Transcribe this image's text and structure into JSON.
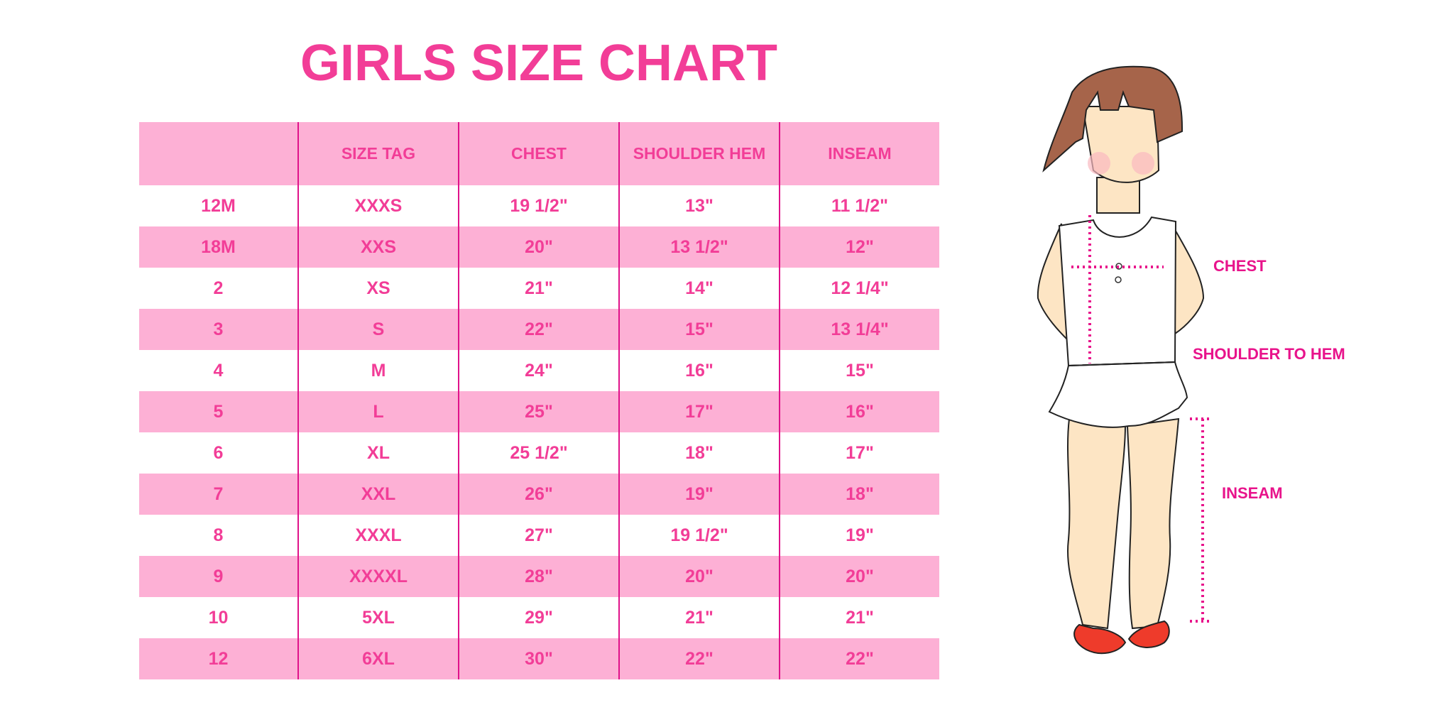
{
  "title": "GIRLS SIZE CHART",
  "table": {
    "headers": [
      "",
      "SIZE TAG",
      "CHEST",
      "SHOULDER HEM",
      "INSEAM"
    ],
    "rows": [
      [
        "12M",
        "XXXS",
        "19 1/2\"",
        "13\"",
        "11 1/2\""
      ],
      [
        "18M",
        "XXS",
        "20\"",
        "13 1/2\"",
        "12\""
      ],
      [
        "2",
        "XS",
        "21\"",
        "14\"",
        "12 1/4\""
      ],
      [
        "3",
        "S",
        "22\"",
        "15\"",
        "13 1/4\""
      ],
      [
        "4",
        "M",
        "24\"",
        "16\"",
        "15\""
      ],
      [
        "5",
        "L",
        "25\"",
        "17\"",
        "16\""
      ],
      [
        "6",
        "XL",
        "25 1/2\"",
        "18\"",
        "17\""
      ],
      [
        "7",
        "XXL",
        "26\"",
        "19\"",
        "18\""
      ],
      [
        "8",
        "XXXL",
        "27\"",
        "19 1/2\"",
        "19\""
      ],
      [
        "9",
        "XXXXL",
        "28\"",
        "20\"",
        "20\""
      ],
      [
        "10",
        "5XL",
        "29\"",
        "21\"",
        "21\""
      ],
      [
        "12",
        "6XL",
        "30\"",
        "22\"",
        "22\""
      ]
    ]
  },
  "figure": {
    "labels": {
      "chest": "CHEST",
      "shoulder": "SHOULDER TO HEM",
      "inseam": "INSEAM"
    }
  },
  "colors": {
    "accent": "#f23d97",
    "row_fill": "#fdb0d5",
    "grid": "#e0128a",
    "label": "#e8138b"
  }
}
